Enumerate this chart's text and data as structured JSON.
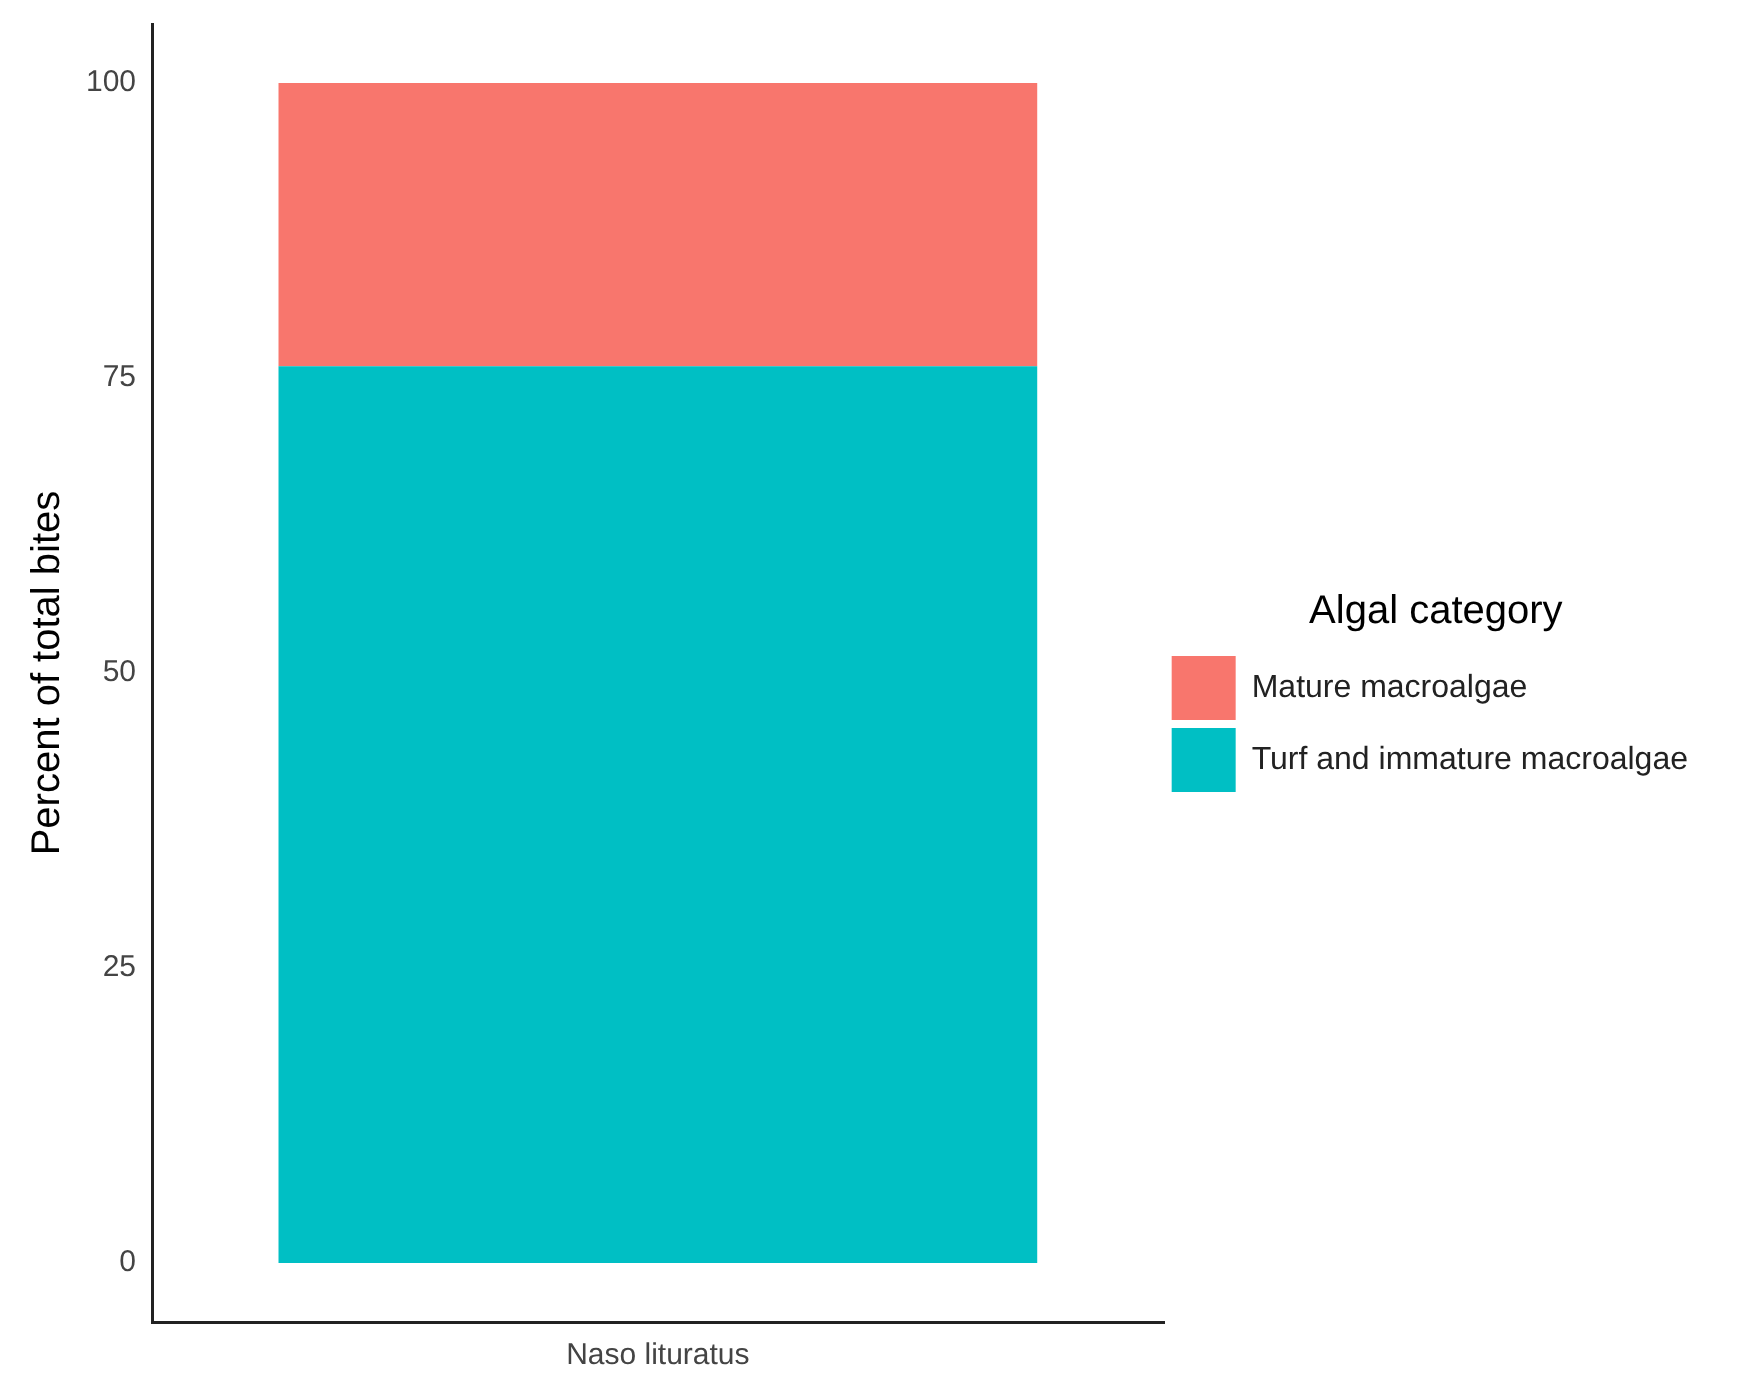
{
  "chart_data": {
    "type": "bar",
    "stacked": true,
    "categories": [
      "Naso lituratus"
    ],
    "ylabel": "Percent of total bites",
    "legend_title": "Algal category",
    "legend": "right",
    "grid": false,
    "ylim": [
      -5,
      105
    ],
    "yticks": [
      0,
      25,
      50,
      75,
      100
    ],
    "series": [
      {
        "name": "Turf and immature macroalgae",
        "color": "#00bfc4",
        "values": [
          76
        ]
      },
      {
        "name": "Mature macroalgae",
        "color": "#f8766d",
        "values": [
          24
        ]
      }
    ]
  }
}
